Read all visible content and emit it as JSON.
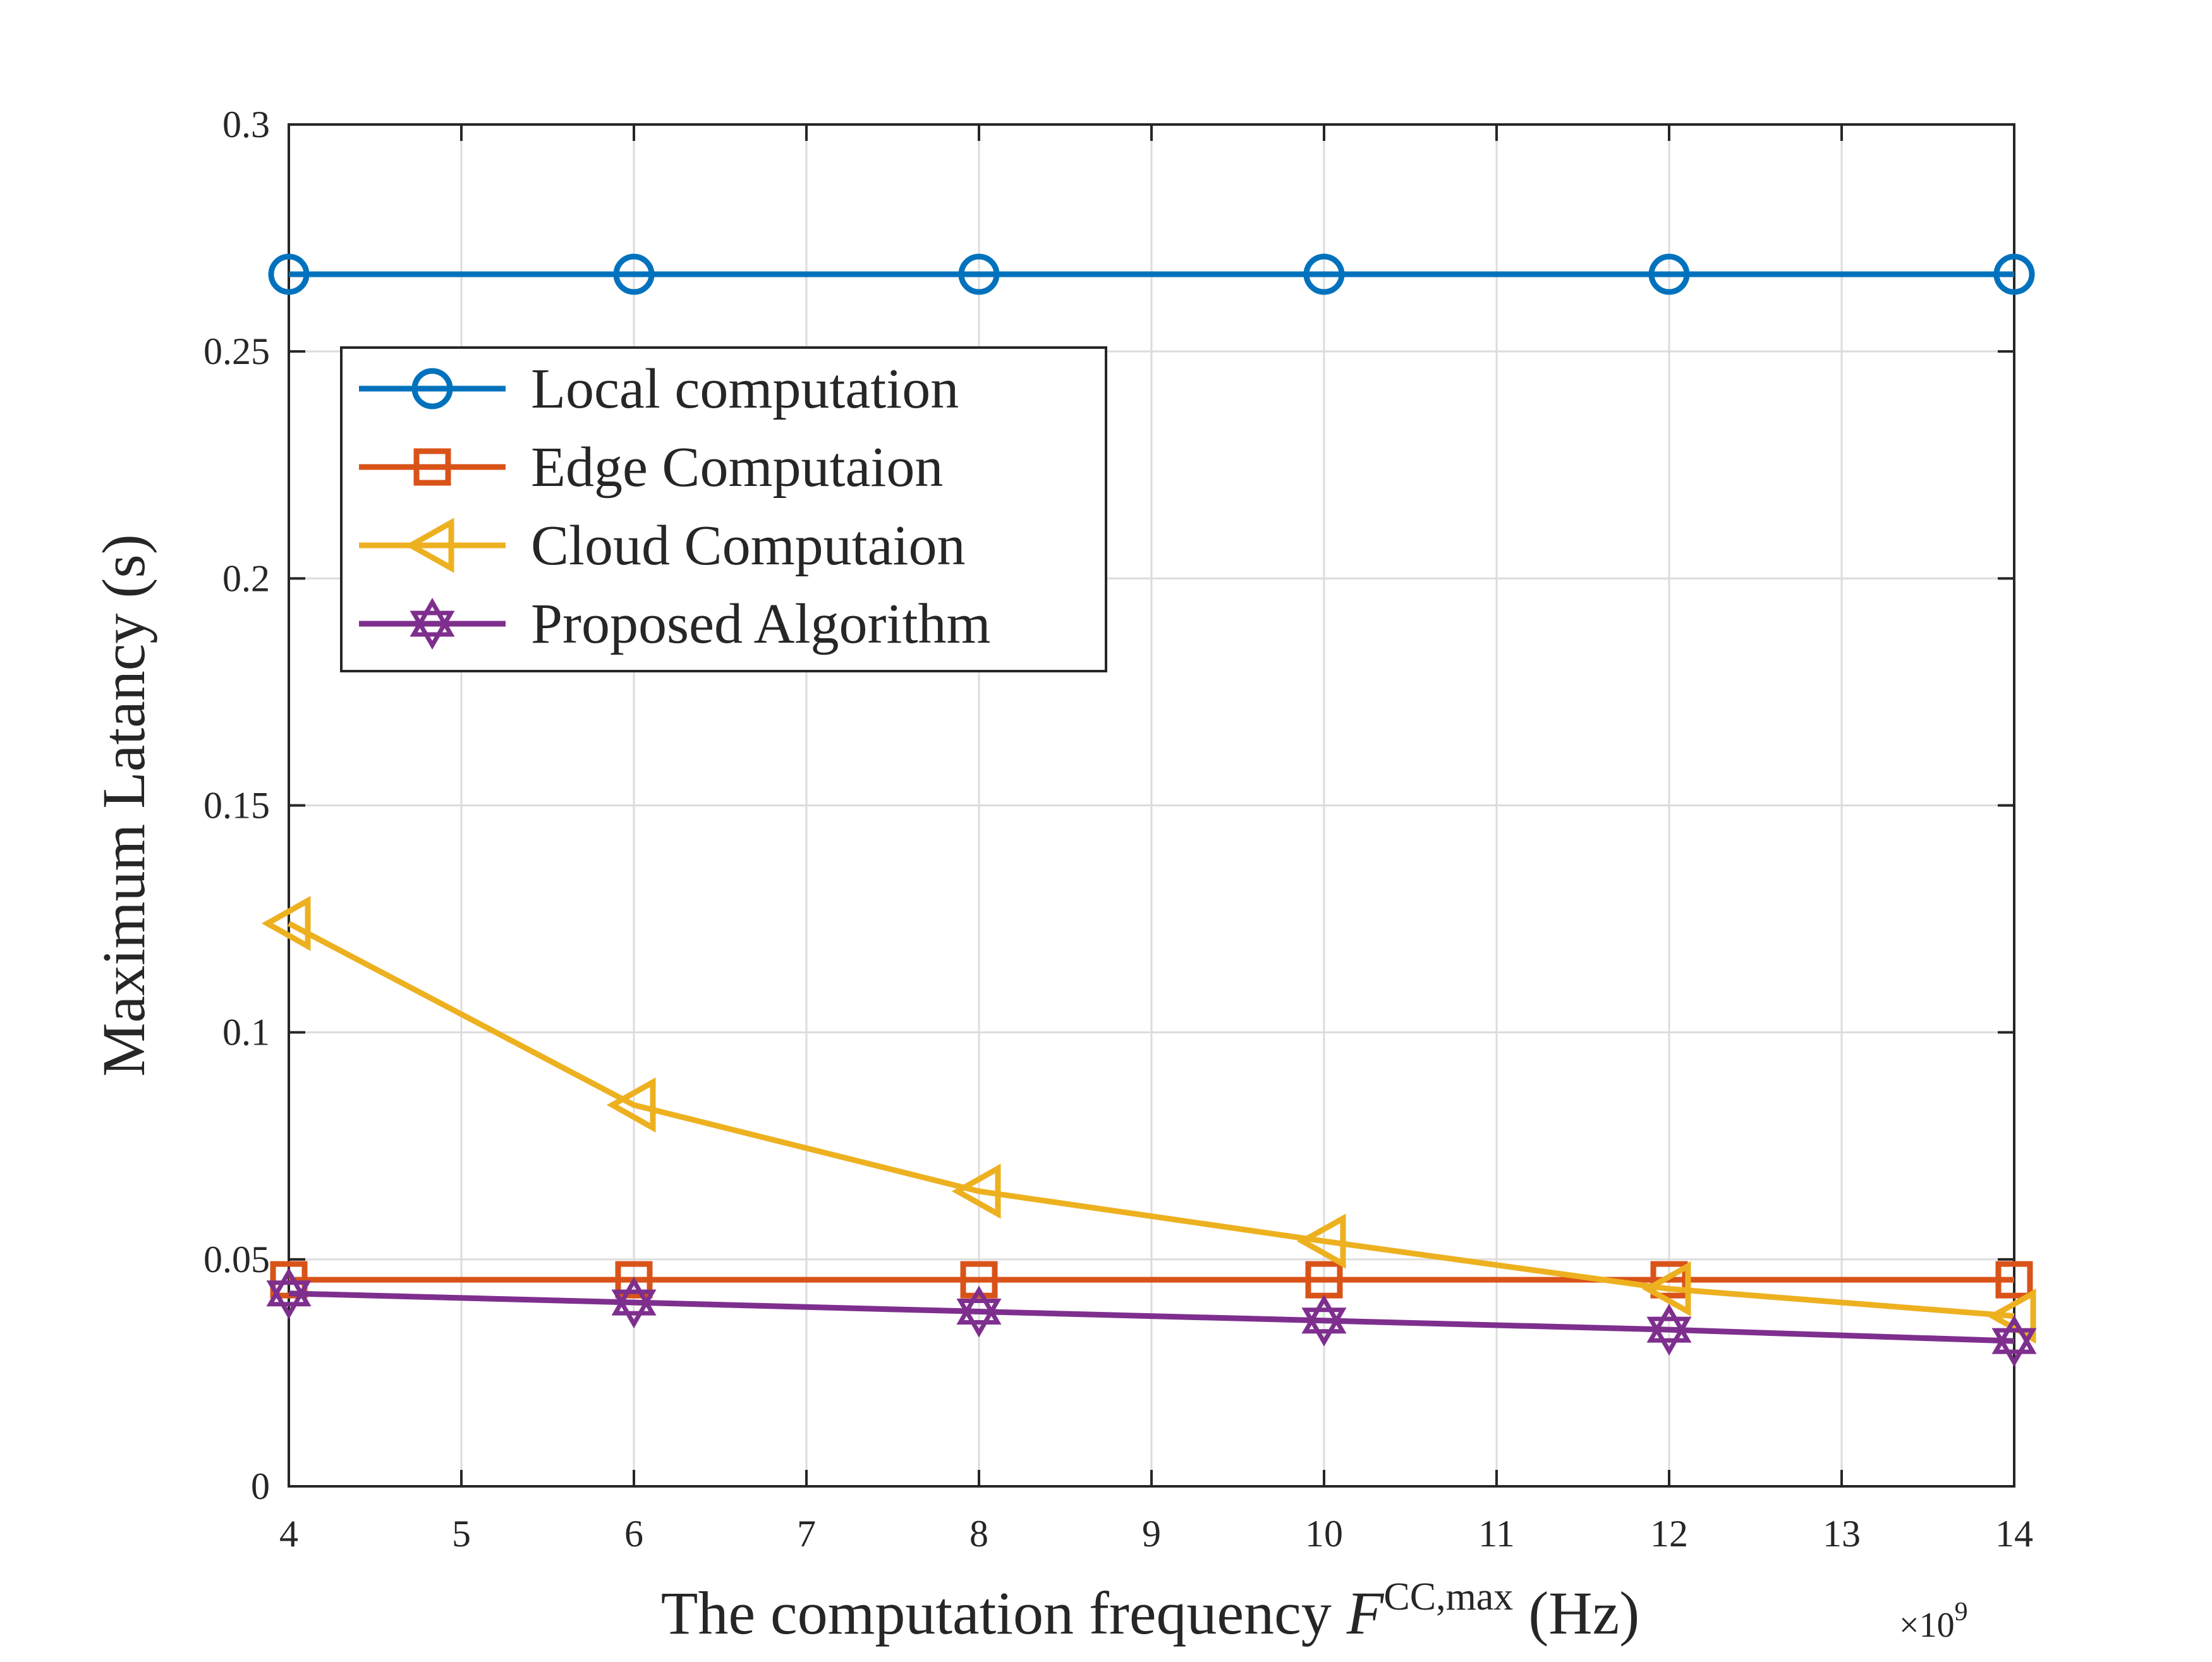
{
  "chart_data": {
    "type": "line",
    "title": "",
    "xlabel": {
      "prefix": "The computation frequency ",
      "var": "F",
      "sup": "CC,max",
      "suffix": " (Hz)"
    },
    "ylabel": "Maximum Latancy (s)",
    "x_exponent": {
      "base": "×10",
      "power": "9"
    },
    "xlim": [
      4,
      14
    ],
    "ylim": [
      0,
      0.3
    ],
    "xticks": [
      4,
      5,
      6,
      7,
      8,
      9,
      10,
      11,
      12,
      13,
      14
    ],
    "xtick_labels": [
      "4",
      "5",
      "6",
      "7",
      "8",
      "9",
      "10",
      "11",
      "12",
      "13",
      "14"
    ],
    "yticks": [
      0,
      0.05,
      0.1,
      0.15,
      0.2,
      0.25,
      0.3
    ],
    "ytick_labels": [
      "0",
      "0.05",
      "0.1",
      "0.15",
      "0.2",
      "0.25",
      "0.3"
    ],
    "grid": true,
    "legend_position": "upper-left",
    "x": [
      4,
      6,
      8,
      10,
      12,
      14
    ],
    "series": [
      {
        "name": "Local computation",
        "color": "#0072BD",
        "marker": "circle",
        "values": [
          0.267,
          0.267,
          0.267,
          0.267,
          0.267,
          0.267
        ]
      },
      {
        "name": "Edge Computaion",
        "color": "#D95319",
        "marker": "square",
        "values": [
          0.0455,
          0.0455,
          0.0455,
          0.0455,
          0.0455,
          0.0455
        ]
      },
      {
        "name": "Cloud Computaion",
        "color": "#EDB120",
        "marker": "triangle-left",
        "values": [
          0.124,
          0.084,
          0.065,
          0.054,
          0.0435,
          0.0375
        ]
      },
      {
        "name": "Proposed Algorithm",
        "color": "#7E2F8E",
        "marker": "hexagram",
        "values": [
          0.0425,
          0.0405,
          0.0385,
          0.0365,
          0.0345,
          0.032
        ]
      }
    ]
  }
}
